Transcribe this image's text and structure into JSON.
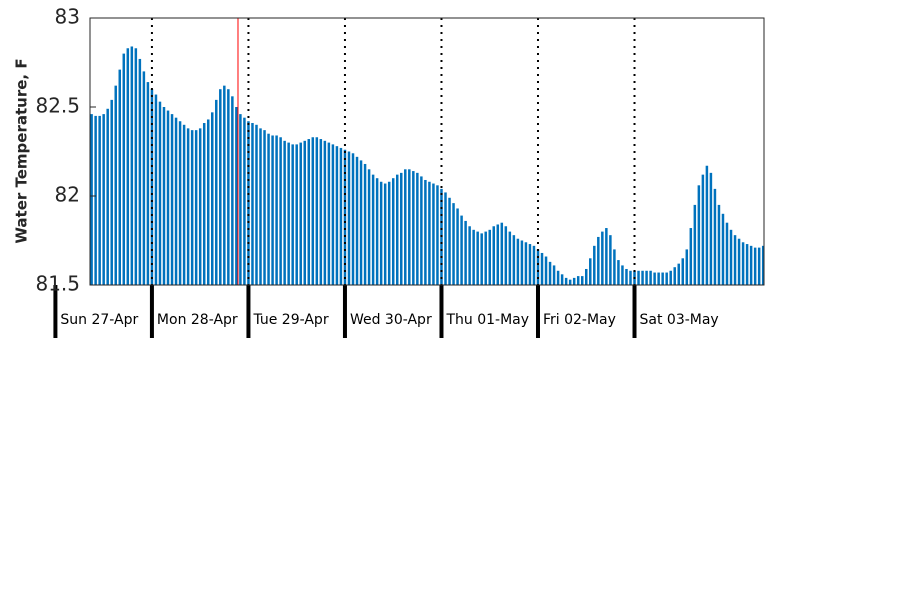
{
  "chart_data": {
    "type": "bar",
    "y_label": "Water Temperature, F",
    "color": "#0072bd",
    "marker_color": "#ff0000",
    "now_marker": 45.4,
    "grid": true,
    "xlim": [
      8.6,
      176.2
    ],
    "xticks": [
      {
        "value": 0,
        "label": "Sun 27-Apr"
      },
      {
        "value": 24,
        "label": "Mon 28-Apr"
      },
      {
        "value": 48,
        "label": "Tue 29-Apr"
      },
      {
        "value": 72,
        "label": "Wed 30-Apr"
      },
      {
        "value": 96,
        "label": "Thu 01-May"
      },
      {
        "value": 120,
        "label": "Fri 02-May"
      },
      {
        "value": 144,
        "label": "Sat 03-May"
      }
    ],
    "ylim": [
      81.5,
      83
    ],
    "yticks": [
      81.5,
      82,
      82.5,
      83
    ],
    "x": [
      9,
      10,
      11,
      12,
      13,
      14,
      15,
      16,
      17,
      18,
      19,
      20,
      21,
      22,
      23,
      24,
      25,
      26,
      27,
      28,
      29,
      30,
      31,
      32,
      33,
      34,
      35,
      36,
      37,
      38,
      39,
      40,
      41,
      42,
      43,
      44,
      45,
      46,
      47,
      48,
      49,
      50,
      51,
      52,
      53,
      54,
      55,
      56,
      57,
      58,
      59,
      60,
      61,
      62,
      63,
      64,
      65,
      66,
      67,
      68,
      69,
      70,
      71,
      72,
      73,
      74,
      75,
      76,
      77,
      78,
      79,
      80,
      81,
      82,
      83,
      84,
      85,
      86,
      87,
      88,
      89,
      90,
      91,
      92,
      93,
      94,
      95,
      96,
      97,
      98,
      99,
      100,
      101,
      102,
      103,
      104,
      105,
      106,
      107,
      108,
      109,
      110,
      111,
      112,
      113,
      114,
      115,
      116,
      117,
      118,
      119,
      120,
      121,
      122,
      123,
      124,
      125,
      126,
      127,
      128,
      129,
      130,
      131,
      132,
      133,
      134,
      135,
      136,
      137,
      138,
      139,
      140,
      141,
      142,
      143,
      144,
      145,
      146,
      147,
      148,
      149,
      150,
      151,
      152,
      153,
      154,
      155,
      156,
      157,
      158,
      159,
      160,
      161,
      162,
      163,
      164,
      165,
      166,
      167,
      168,
      169,
      170,
      171,
      172,
      173,
      174,
      175,
      176
    ],
    "values": [
      82.46,
      82.45,
      82.45,
      82.46,
      82.49,
      82.54,
      82.62,
      82.71,
      82.8,
      82.83,
      82.84,
      82.83,
      82.77,
      82.7,
      82.64,
      82.6,
      82.57,
      82.53,
      82.5,
      82.48,
      82.46,
      82.44,
      82.42,
      82.4,
      82.38,
      82.37,
      82.37,
      82.38,
      82.41,
      82.43,
      82.47,
      82.54,
      82.6,
      82.62,
      82.6,
      82.56,
      82.5,
      82.46,
      82.44,
      82.42,
      82.41,
      82.4,
      82.38,
      82.37,
      82.35,
      82.34,
      82.34,
      82.33,
      82.31,
      82.3,
      82.29,
      82.29,
      82.3,
      82.31,
      82.32,
      82.33,
      82.33,
      82.32,
      82.31,
      82.3,
      82.29,
      82.28,
      82.27,
      82.26,
      82.25,
      82.24,
      82.22,
      82.2,
      82.18,
      82.15,
      82.12,
      82.1,
      82.08,
      82.07,
      82.08,
      82.1,
      82.12,
      82.13,
      82.15,
      82.15,
      82.14,
      82.13,
      82.11,
      82.09,
      82.08,
      82.07,
      82.06,
      82.04,
      82.02,
      81.99,
      81.96,
      81.93,
      81.89,
      81.86,
      81.83,
      81.81,
      81.8,
      81.79,
      81.8,
      81.81,
      81.83,
      81.84,
      81.85,
      81.83,
      81.8,
      81.78,
      81.76,
      81.75,
      81.74,
      81.73,
      81.72,
      81.7,
      81.68,
      81.66,
      81.63,
      81.61,
      81.58,
      81.56,
      81.54,
      81.53,
      81.54,
      81.55,
      81.55,
      81.59,
      81.65,
      81.72,
      81.77,
      81.8,
      81.82,
      81.78,
      81.7,
      81.64,
      81.61,
      81.59,
      81.58,
      81.58,
      81.58,
      81.58,
      81.58,
      81.58,
      81.57,
      81.57,
      81.57,
      81.57,
      81.58,
      81.6,
      81.62,
      81.65,
      81.7,
      81.82,
      81.95,
      82.06,
      82.12,
      82.17,
      82.13,
      82.04,
      81.95,
      81.9,
      81.85,
      81.81,
      81.78,
      81.76,
      81.74,
      81.73,
      81.72,
      81.71,
      81.71,
      81.72
    ]
  }
}
